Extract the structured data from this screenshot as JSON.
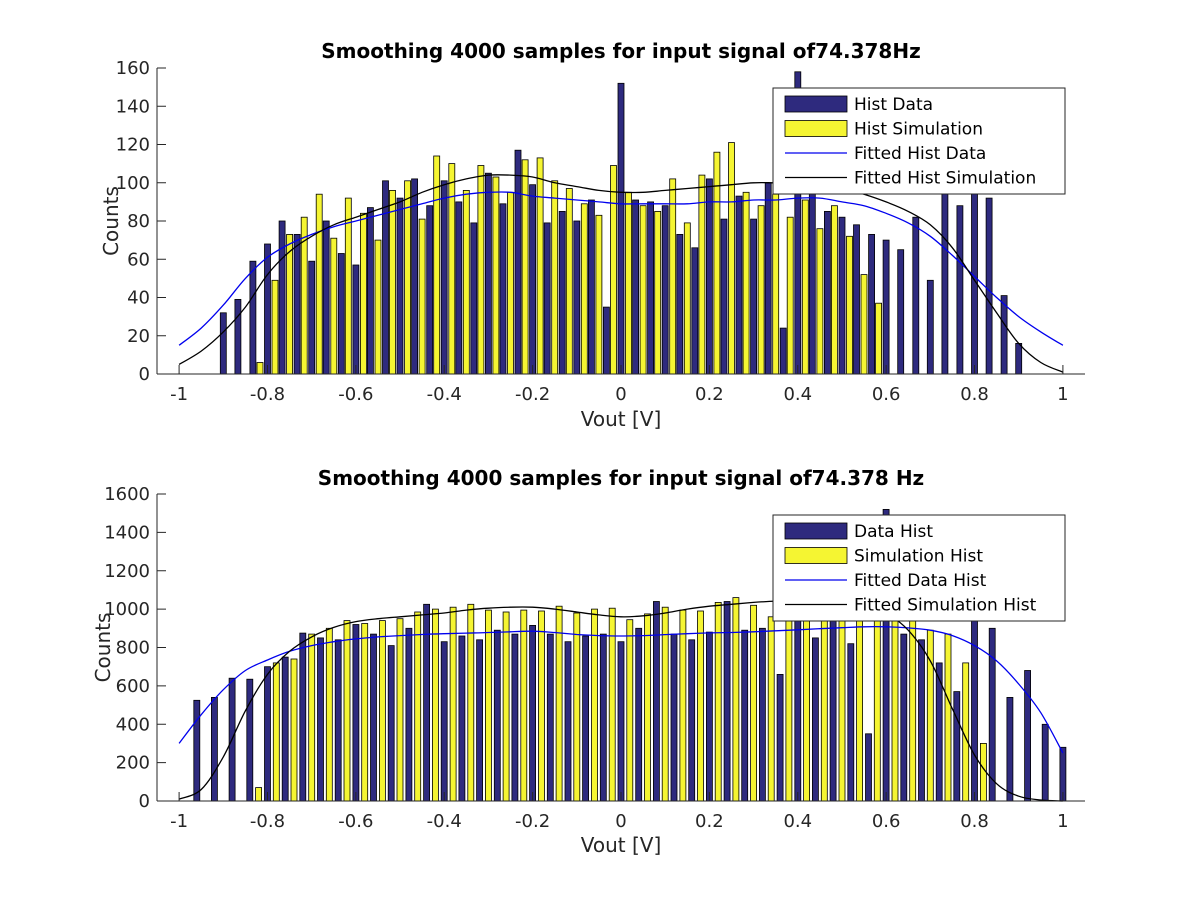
{
  "chart_data": [
    {
      "type": "bar",
      "title": "Smoothing 4000 samples for input signal of74.378Hz",
      "xlabel": "Vout [V]",
      "ylabel": "Counts",
      "xlim": [
        -1.05,
        1.05
      ],
      "ylim": [
        0,
        160
      ],
      "xticks": [
        -1,
        -0.8,
        -0.6,
        -0.4,
        -0.2,
        0,
        0.2,
        0.4,
        0.6,
        0.8,
        1
      ],
      "xtick_labels": [
        "-1",
        "-0.8",
        "-0.6",
        "-0.4",
        "-0.2",
        "0",
        "0.2",
        "0.4",
        "0.6",
        "0.8",
        "1"
      ],
      "yticks": [
        0,
        20,
        40,
        60,
        80,
        100,
        120,
        140,
        160
      ],
      "ytick_labels": [
        "0",
        "20",
        "40",
        "60",
        "80",
        "100",
        "120",
        "140",
        "160"
      ],
      "legend_position": "top-right",
      "bar_series": [
        {
          "name": "Hist Data",
          "color": "#2e2a7e",
          "x": [
            -0.9,
            -0.867,
            -0.833,
            -0.8,
            -0.767,
            -0.733,
            -0.7,
            -0.667,
            -0.633,
            -0.6,
            -0.567,
            -0.533,
            -0.5,
            -0.467,
            -0.433,
            -0.4,
            -0.367,
            -0.333,
            -0.3,
            -0.267,
            -0.233,
            -0.2,
            -0.167,
            -0.133,
            -0.1,
            -0.067,
            -0.033,
            0.0,
            0.033,
            0.067,
            0.1,
            0.133,
            0.167,
            0.2,
            0.233,
            0.267,
            0.3,
            0.333,
            0.367,
            0.4,
            0.433,
            0.467,
            0.5,
            0.533,
            0.567,
            0.6,
            0.633,
            0.667,
            0.7,
            0.733,
            0.767,
            0.8,
            0.833,
            0.867,
            0.9
          ],
          "values": [
            32,
            39,
            59,
            68,
            80,
            73,
            59,
            80,
            63,
            57,
            87,
            101,
            92,
            102,
            88,
            101,
            90,
            79,
            105,
            89,
            117,
            99,
            79,
            85,
            80,
            91,
            35,
            152,
            91,
            90,
            88,
            73,
            66,
            102,
            81,
            93,
            81,
            100,
            24,
            158,
            100,
            85,
            82,
            78,
            73,
            70,
            65,
            82,
            49,
            99,
            88,
            97,
            92,
            41,
            16
          ]
        },
        {
          "name": "Hist Simulation",
          "color": "#f5f532",
          "x": [
            -0.817,
            -0.783,
            -0.75,
            -0.717,
            -0.683,
            -0.65,
            -0.617,
            -0.583,
            -0.55,
            -0.517,
            -0.483,
            -0.45,
            -0.417,
            -0.383,
            -0.35,
            -0.317,
            -0.283,
            -0.25,
            -0.217,
            -0.183,
            -0.15,
            -0.117,
            -0.083,
            -0.05,
            -0.017,
            0.017,
            0.05,
            0.083,
            0.117,
            0.15,
            0.183,
            0.217,
            0.25,
            0.283,
            0.317,
            0.35,
            0.383,
            0.417,
            0.45,
            0.483,
            0.517,
            0.55,
            0.583,
            0.617,
            0.65,
            0.683,
            0.717,
            0.75,
            0.783,
            0.817
          ],
          "values": [
            6,
            49,
            73,
            82,
            94,
            71,
            92,
            84,
            70,
            96,
            101,
            81,
            114,
            110,
            96,
            109,
            103,
            95,
            112,
            113,
            101,
            97,
            89,
            83,
            109,
            95,
            88,
            85,
            102,
            79,
            104,
            116,
            121,
            95,
            88,
            94,
            82,
            91,
            76,
            88,
            72,
            52,
            37,
            0,
            0,
            0,
            0,
            0,
            0,
            0
          ]
        }
      ],
      "line_series": [
        {
          "name": "Fitted Hist Data",
          "color": "#0000ee",
          "x": [
            -1,
            -0.95,
            -0.9,
            -0.85,
            -0.8,
            -0.75,
            -0.7,
            -0.65,
            -0.6,
            -0.55,
            -0.5,
            -0.45,
            -0.4,
            -0.35,
            -0.3,
            -0.25,
            -0.2,
            -0.15,
            -0.1,
            -0.05,
            0,
            0.05,
            0.1,
            0.15,
            0.2,
            0.25,
            0.3,
            0.35,
            0.4,
            0.45,
            0.5,
            0.55,
            0.6,
            0.65,
            0.7,
            0.75,
            0.8,
            0.85,
            0.9,
            0.95,
            1
          ],
          "y": [
            15,
            24,
            36,
            50,
            61,
            68,
            73,
            77,
            80,
            83,
            86,
            89,
            92,
            94,
            95,
            95,
            93,
            92,
            91,
            90,
            89,
            89,
            89,
            89,
            90,
            90,
            91,
            91,
            92,
            92,
            90,
            88,
            84,
            79,
            72,
            62,
            51,
            40,
            30,
            22,
            15
          ]
        },
        {
          "name": "Fitted Hist Simulation",
          "color": "#000000",
          "x": [
            -1,
            -0.95,
            -0.9,
            -0.85,
            -0.8,
            -0.75,
            -0.7,
            -0.65,
            -0.6,
            -0.55,
            -0.5,
            -0.45,
            -0.4,
            -0.35,
            -0.3,
            -0.25,
            -0.2,
            -0.15,
            -0.1,
            -0.05,
            0,
            0.05,
            0.1,
            0.15,
            0.2,
            0.25,
            0.3,
            0.35,
            0.4,
            0.45,
            0.5,
            0.55,
            0.6,
            0.65,
            0.7,
            0.75,
            0.8,
            0.85,
            0.9,
            0.95,
            1
          ],
          "y": [
            5,
            12,
            22,
            35,
            52,
            64,
            72,
            78,
            82,
            86,
            90,
            95,
            99,
            102,
            104,
            104,
            103,
            100,
            98,
            96,
            95,
            95,
            96,
            97,
            98,
            99,
            100,
            100,
            100,
            99,
            97,
            94,
            90,
            85,
            78,
            66,
            49,
            32,
            16,
            6,
            1
          ]
        }
      ]
    },
    {
      "type": "bar",
      "title": "Smoothing 4000 samples for input signal of74.378 Hz",
      "xlabel": "Vout [V]",
      "ylabel": "Counts",
      "xlim": [
        -1.05,
        1.05
      ],
      "ylim": [
        0,
        1600
      ],
      "xticks": [
        -1,
        -0.8,
        -0.6,
        -0.4,
        -0.2,
        0,
        0.2,
        0.4,
        0.6,
        0.8,
        1
      ],
      "xtick_labels": [
        "-1",
        "-0.8",
        "-0.6",
        "-0.4",
        "-0.2",
        "0",
        "0.2",
        "0.4",
        "0.6",
        "0.8",
        "1"
      ],
      "yticks": [
        0,
        200,
        400,
        600,
        800,
        1000,
        1200,
        1400,
        1600
      ],
      "ytick_labels": [
        "0",
        "200",
        "400",
        "600",
        "800",
        "1000",
        "1200",
        "1400",
        "1600"
      ],
      "legend_position": "top-right",
      "bar_series": [
        {
          "name": "Data Hist",
          "color": "#2e2a7e",
          "x": [
            -0.96,
            -0.92,
            -0.88,
            -0.84,
            -0.8,
            -0.76,
            -0.72,
            -0.68,
            -0.64,
            -0.6,
            -0.56,
            -0.52,
            -0.48,
            -0.44,
            -0.4,
            -0.36,
            -0.32,
            -0.28,
            -0.24,
            -0.2,
            -0.16,
            -0.12,
            -0.08,
            -0.04,
            0.0,
            0.04,
            0.08,
            0.12,
            0.16,
            0.2,
            0.24,
            0.28,
            0.32,
            0.36,
            0.4,
            0.44,
            0.48,
            0.52,
            0.56,
            0.6,
            0.64,
            0.68,
            0.72,
            0.76,
            0.8,
            0.84,
            0.88,
            0.92,
            0.96,
            1.0
          ],
          "values": [
            525,
            540,
            640,
            635,
            700,
            750,
            875,
            850,
            840,
            920,
            870,
            810,
            900,
            1025,
            830,
            860,
            840,
            890,
            870,
            915,
            870,
            830,
            860,
            870,
            830,
            900,
            1040,
            870,
            840,
            880,
            1040,
            890,
            900,
            660,
            960,
            850,
            1020,
            820,
            350,
            1520,
            870,
            840,
            720,
            570,
            1000,
            900,
            540,
            680,
            400,
            280
          ]
        },
        {
          "name": "Simulation Hist",
          "color": "#f5f532",
          "x": [
            -0.82,
            -0.78,
            -0.74,
            -0.7,
            -0.66,
            -0.62,
            -0.58,
            -0.54,
            -0.5,
            -0.46,
            -0.42,
            -0.38,
            -0.34,
            -0.3,
            -0.26,
            -0.22,
            -0.18,
            -0.14,
            -0.1,
            -0.06,
            -0.02,
            0.02,
            0.06,
            0.1,
            0.14,
            0.18,
            0.22,
            0.26,
            0.3,
            0.34,
            0.38,
            0.42,
            0.46,
            0.5,
            0.54,
            0.58,
            0.62,
            0.66,
            0.7,
            0.74,
            0.78,
            0.82
          ],
          "values": [
            70,
            720,
            740,
            870,
            900,
            940,
            925,
            940,
            950,
            985,
            1000,
            1010,
            1025,
            995,
            985,
            995,
            990,
            1015,
            980,
            1000,
            1005,
            945,
            975,
            1010,
            995,
            990,
            1035,
            1060,
            1020,
            960,
            940,
            1030,
            1020,
            1030,
            1040,
            1000,
            1020,
            940,
            890,
            870,
            720,
            300
          ]
        }
      ],
      "line_series": [
        {
          "name": "Fitted Data Hist",
          "color": "#0000ee",
          "x": [
            -1,
            -0.95,
            -0.9,
            -0.85,
            -0.8,
            -0.75,
            -0.7,
            -0.65,
            -0.6,
            -0.55,
            -0.5,
            -0.45,
            -0.4,
            -0.35,
            -0.3,
            -0.25,
            -0.2,
            -0.15,
            -0.1,
            -0.05,
            0,
            0.05,
            0.1,
            0.15,
            0.2,
            0.25,
            0.3,
            0.35,
            0.4,
            0.45,
            0.5,
            0.55,
            0.6,
            0.65,
            0.7,
            0.75,
            0.8,
            0.85,
            0.9,
            0.95,
            1
          ],
          "y": [
            300,
            450,
            580,
            680,
            735,
            780,
            810,
            830,
            845,
            855,
            862,
            868,
            872,
            875,
            878,
            882,
            885,
            878,
            868,
            862,
            860,
            862,
            867,
            872,
            876,
            878,
            882,
            887,
            892,
            898,
            903,
            908,
            908,
            902,
            890,
            862,
            810,
            730,
            610,
            460,
            250
          ]
        },
        {
          "name": "Fitted Simulation Hist",
          "color": "#000000",
          "x": [
            -1,
            -0.95,
            -0.9,
            -0.85,
            -0.8,
            -0.75,
            -0.7,
            -0.65,
            -0.6,
            -0.55,
            -0.5,
            -0.45,
            -0.4,
            -0.35,
            -0.3,
            -0.25,
            -0.2,
            -0.15,
            -0.1,
            -0.05,
            0,
            0.05,
            0.1,
            0.15,
            0.2,
            0.25,
            0.3,
            0.35,
            0.4,
            0.45,
            0.5,
            0.55,
            0.6,
            0.65,
            0.7,
            0.75,
            0.8,
            0.85,
            0.9,
            0.95,
            1
          ],
          "y": [
            10,
            60,
            230,
            470,
            660,
            780,
            855,
            905,
            935,
            950,
            960,
            970,
            980,
            995,
            1005,
            1010,
            1010,
            1000,
            985,
            970,
            960,
            965,
            980,
            1000,
            1015,
            1025,
            1035,
            1042,
            1046,
            1046,
            1040,
            1025,
            980,
            890,
            730,
            480,
            240,
            90,
            25,
            5,
            0
          ]
        }
      ]
    }
  ]
}
